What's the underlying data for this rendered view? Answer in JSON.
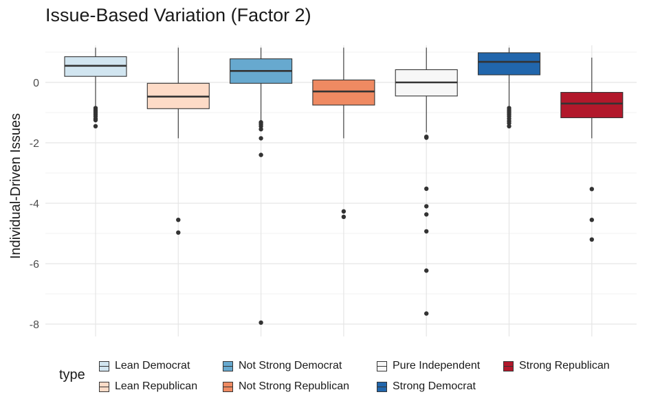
{
  "chart_data": {
    "type": "box",
    "title": "Issue-Based Variation (Factor 2)",
    "xlabel": "",
    "ylabel": "Individual-Driven Issues",
    "ylim": [
      -8.3,
      1.35
    ],
    "yticks": [
      0,
      -2,
      -4,
      -6,
      -8
    ],
    "grid": true,
    "legend_title": "type",
    "legend_position": "bottom",
    "series": [
      {
        "name": "Lean Democrat",
        "color": "#d1e5f0",
        "whisker_low": -0.8,
        "q1": 0.2,
        "median": 0.55,
        "q3": 0.85,
        "whisker_high": 1.15,
        "outliers": [
          -0.85,
          -0.92,
          -0.98,
          -1.05,
          -1.12,
          -1.2,
          -1.25,
          -1.45
        ]
      },
      {
        "name": "Lean Republican",
        "color": "#fddbc7",
        "whisker_low": -1.85,
        "q1": -0.87,
        "median": -0.47,
        "q3": -0.03,
        "whisker_high": 1.15,
        "outliers": [
          -4.55,
          -4.97
        ]
      },
      {
        "name": "Not Strong Democrat",
        "color": "#67a9cf",
        "whisker_low": -1.25,
        "q1": -0.03,
        "median": 0.38,
        "q3": 0.78,
        "whisker_high": 1.15,
        "outliers": [
          -1.32,
          -1.38,
          -1.45,
          -1.55,
          -1.85,
          -2.4,
          -7.95
        ]
      },
      {
        "name": "Not Strong Republican",
        "color": "#ef8a62",
        "whisker_low": -1.85,
        "q1": -0.75,
        "median": -0.3,
        "q3": 0.08,
        "whisker_high": 1.15,
        "outliers": [
          -4.27,
          -4.45
        ]
      },
      {
        "name": "Pure Independent",
        "color": "#f7f7f7",
        "whisker_low": -1.65,
        "q1": -0.45,
        "median": 0.0,
        "q3": 0.42,
        "whisker_high": 1.15,
        "outliers": [
          -1.8,
          -1.83,
          -3.52,
          -4.1,
          -4.37,
          -4.93,
          -6.23,
          -7.65
        ]
      },
      {
        "name": "Strong Democrat",
        "color": "#2166ac",
        "whisker_low": -0.8,
        "q1": 0.25,
        "median": 0.68,
        "q3": 0.98,
        "whisker_high": 1.15,
        "outliers": [
          -0.85,
          -0.92,
          -0.98,
          -1.05,
          -1.12,
          -1.2,
          -1.28,
          -1.35,
          -1.45
        ]
      },
      {
        "name": "Strong Republican",
        "color": "#b2182b",
        "whisker_low": -1.85,
        "q1": -1.17,
        "median": -0.7,
        "q3": -0.33,
        "whisker_high": 0.82,
        "outliers": [
          -3.53,
          -4.55,
          -5.2
        ]
      }
    ]
  }
}
